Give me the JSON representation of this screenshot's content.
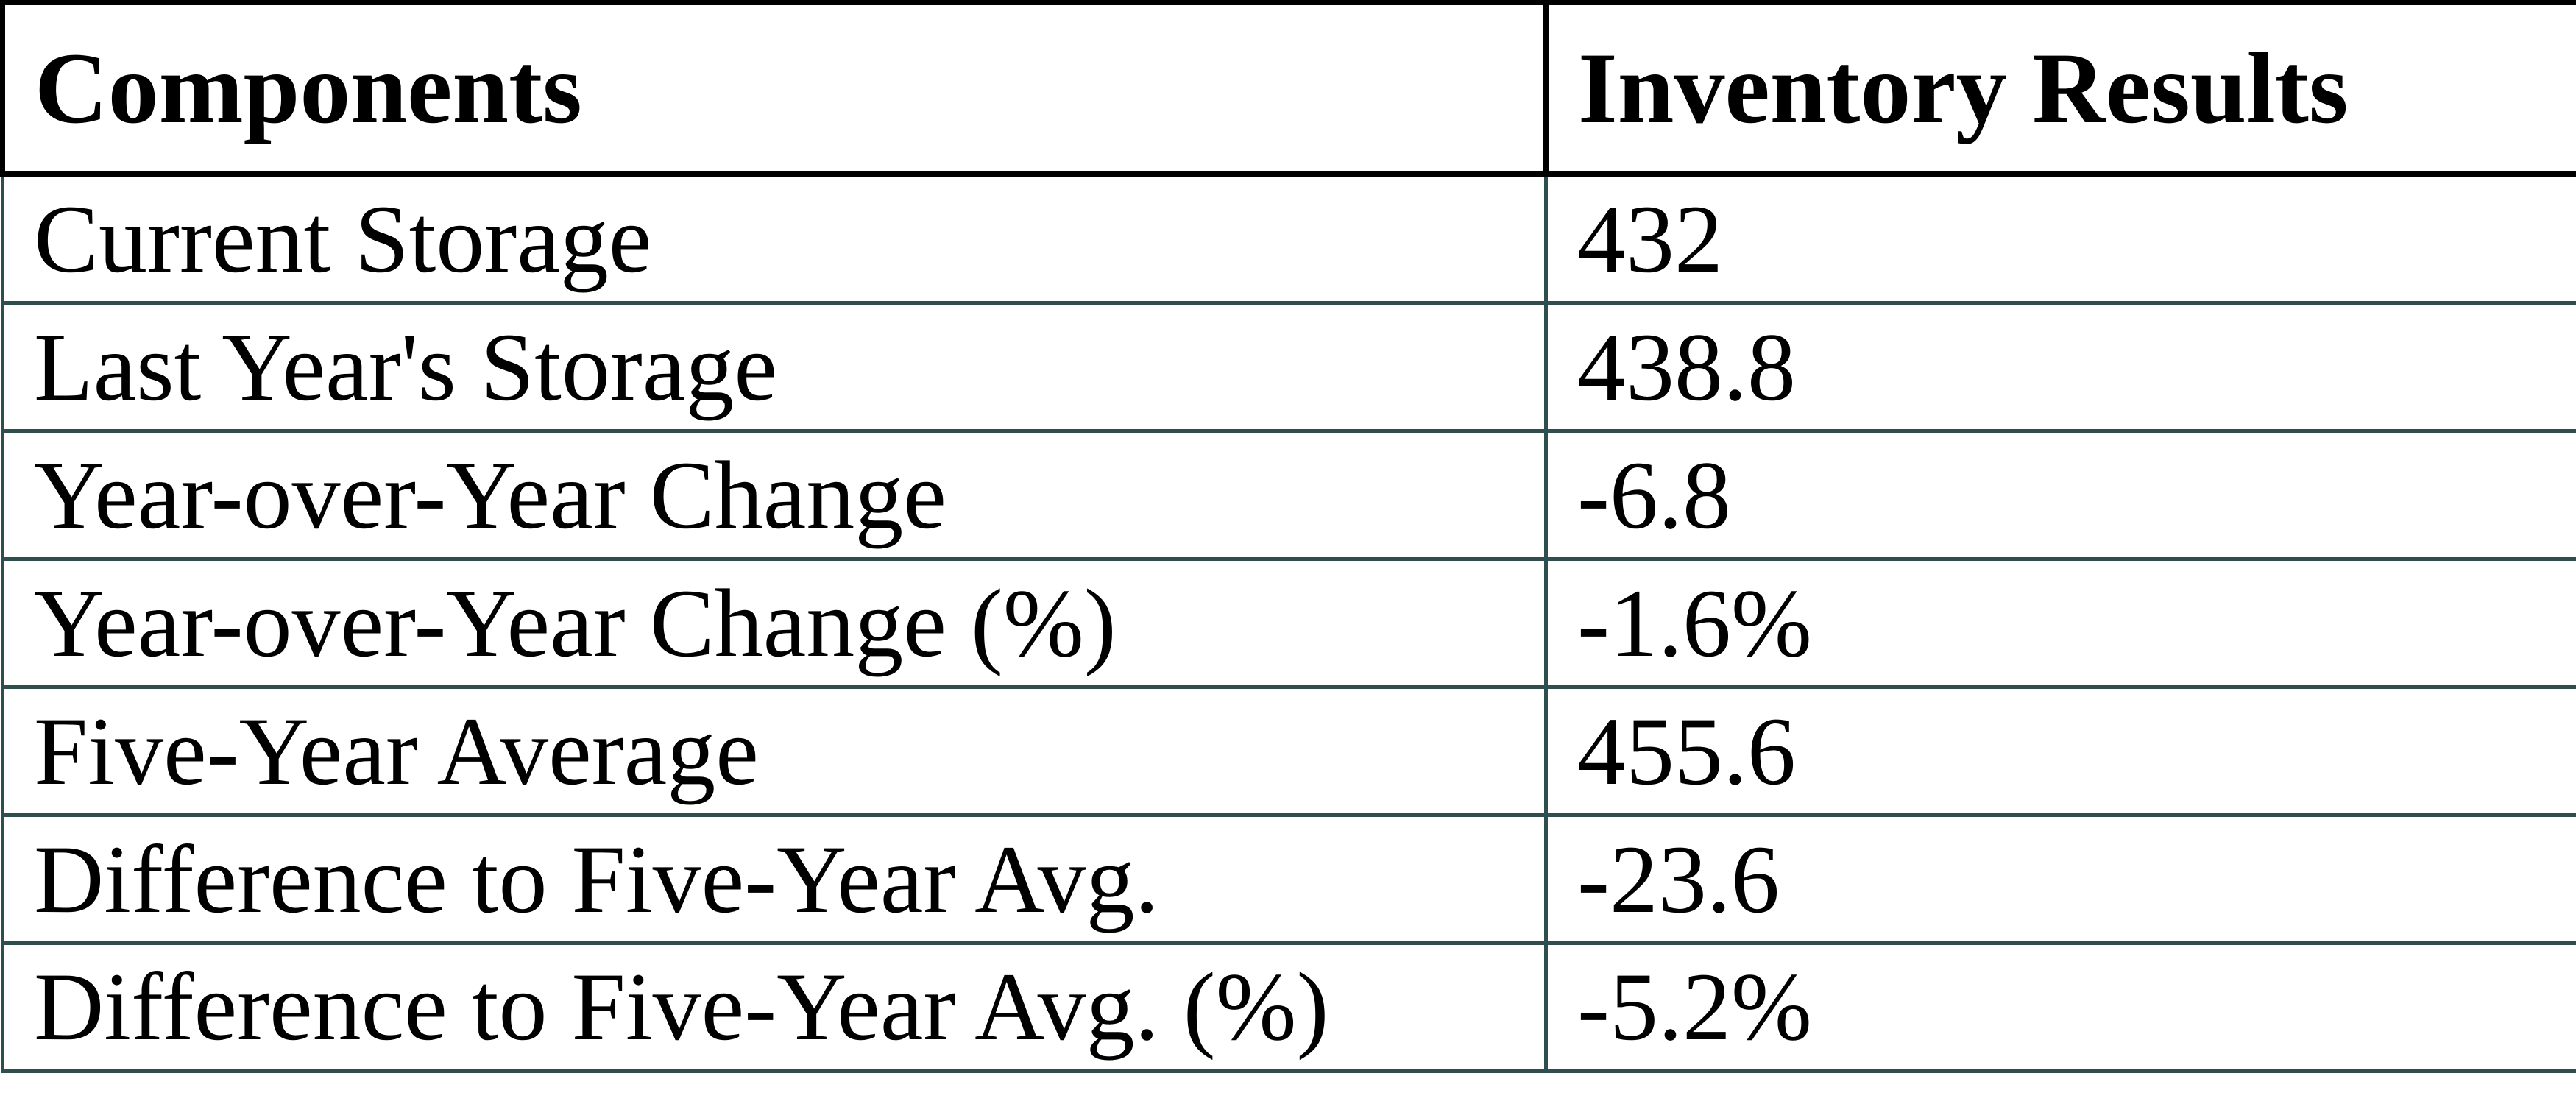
{
  "colors": {
    "header_border": "#000000",
    "body_border": "#2F4F4F",
    "text": "#000000",
    "background": "#FFFFFF"
  },
  "chart_data": {
    "type": "table",
    "columns": [
      "Components",
      "Inventory Results"
    ],
    "rows": [
      [
        "Current Storage",
        "432"
      ],
      [
        "Last Year's Storage",
        "438.8"
      ],
      [
        "Year-over-Year Change",
        "-6.8"
      ],
      [
        "Year-over-Year Change (%)",
        "-1.6%"
      ],
      [
        "Five-Year Average",
        "455.6"
      ],
      [
        "Difference to Five-Year Avg.",
        "-23.6"
      ],
      [
        "Difference to Five-Year Avg. (%)",
        "-5.2%"
      ]
    ]
  }
}
